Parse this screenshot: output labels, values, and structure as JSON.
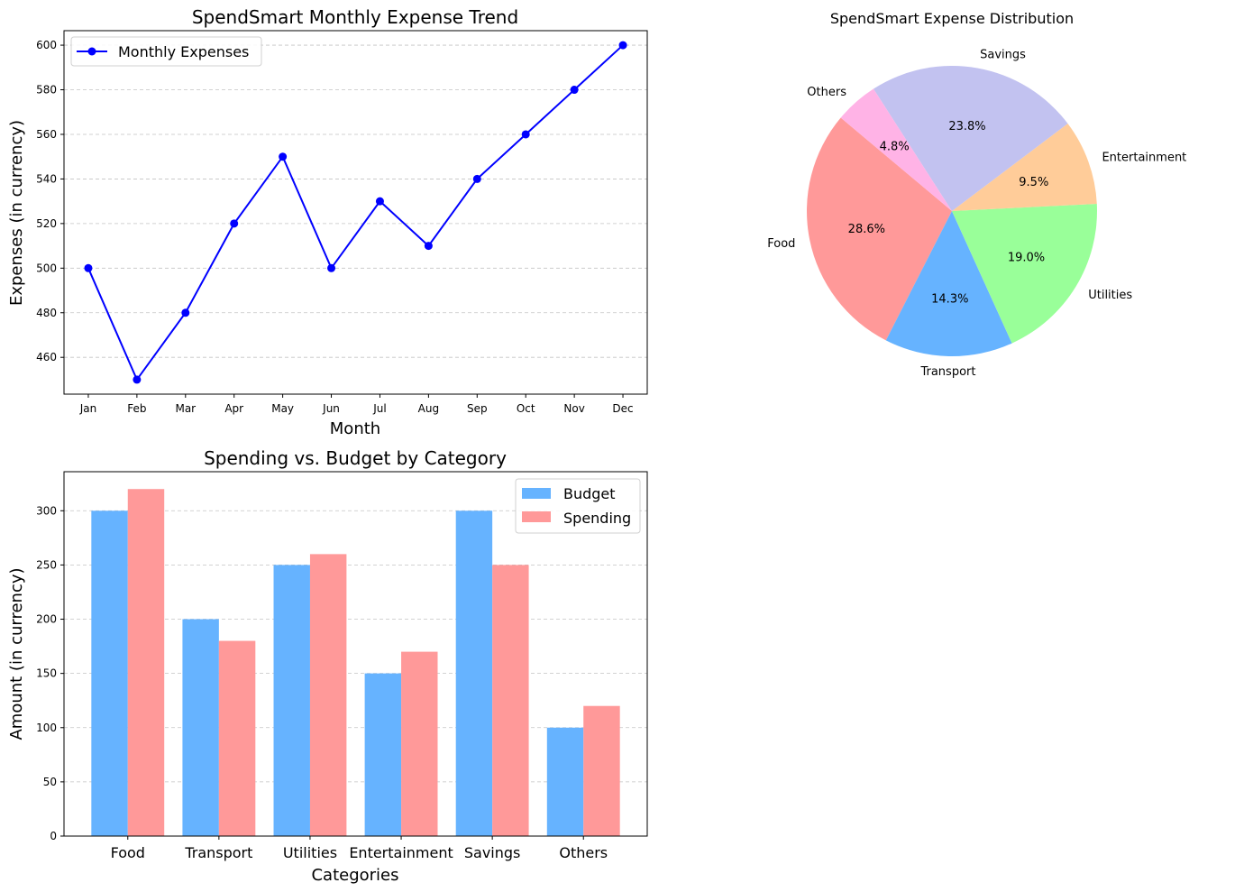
{
  "chart_data": [
    {
      "type": "line",
      "title": "SpendSmart Monthly Expense Trend",
      "xlabel": "Month",
      "ylabel": "Expenses (in currency)",
      "categories": [
        "Jan",
        "Feb",
        "Mar",
        "Apr",
        "May",
        "Jun",
        "Jul",
        "Aug",
        "Sep",
        "Oct",
        "Nov",
        "Dec"
      ],
      "series": [
        {
          "name": "Monthly Expenses",
          "values": [
            500,
            450,
            480,
            520,
            550,
            500,
            530,
            510,
            540,
            560,
            580,
            600
          ],
          "color": "#0000ff",
          "marker": "circle"
        }
      ],
      "ylim": [
        443.5,
        606.5
      ],
      "yticks": [
        460,
        480,
        500,
        520,
        540,
        560,
        580,
        600
      ],
      "grid": "y",
      "legend_position": "upper-left"
    },
    {
      "type": "pie",
      "title": "SpendSmart Expense Distribution",
      "slices": [
        {
          "label": "Food",
          "value": 28.6,
          "pct_label": "28.6%",
          "color": "#ff9999"
        },
        {
          "label": "Transport",
          "value": 14.3,
          "pct_label": "14.3%",
          "color": "#66b3ff"
        },
        {
          "label": "Utilities",
          "value": 19.0,
          "pct_label": "19.0%",
          "color": "#99ff99"
        },
        {
          "label": "Entertainment",
          "value": 9.5,
          "pct_label": "9.5%",
          "color": "#ffcc99"
        },
        {
          "label": "Savings",
          "value": 23.8,
          "pct_label": "23.8%",
          "color": "#c2c2f0"
        },
        {
          "label": "Others",
          "value": 4.8,
          "pct_label": "4.8%",
          "color": "#ffb3e6"
        }
      ],
      "start_angle_deg": 140,
      "direction": "counterclockwise"
    },
    {
      "type": "bar",
      "title": "Spending vs. Budget by Category",
      "xlabel": "Categories",
      "ylabel": "Amount (in currency)",
      "categories": [
        "Food",
        "Transport",
        "Utilities",
        "Entertainment",
        "Savings",
        "Others"
      ],
      "series": [
        {
          "name": "Budget",
          "values": [
            300,
            200,
            250,
            150,
            300,
            100
          ],
          "color": "#66b3ff"
        },
        {
          "name": "Spending",
          "values": [
            320,
            180,
            260,
            170,
            250,
            120
          ],
          "color": "#ff9999"
        }
      ],
      "ylim": [
        0,
        336
      ],
      "yticks": [
        0,
        50,
        100,
        150,
        200,
        250,
        300
      ],
      "grid": "y",
      "legend_position": "upper-right"
    }
  ]
}
